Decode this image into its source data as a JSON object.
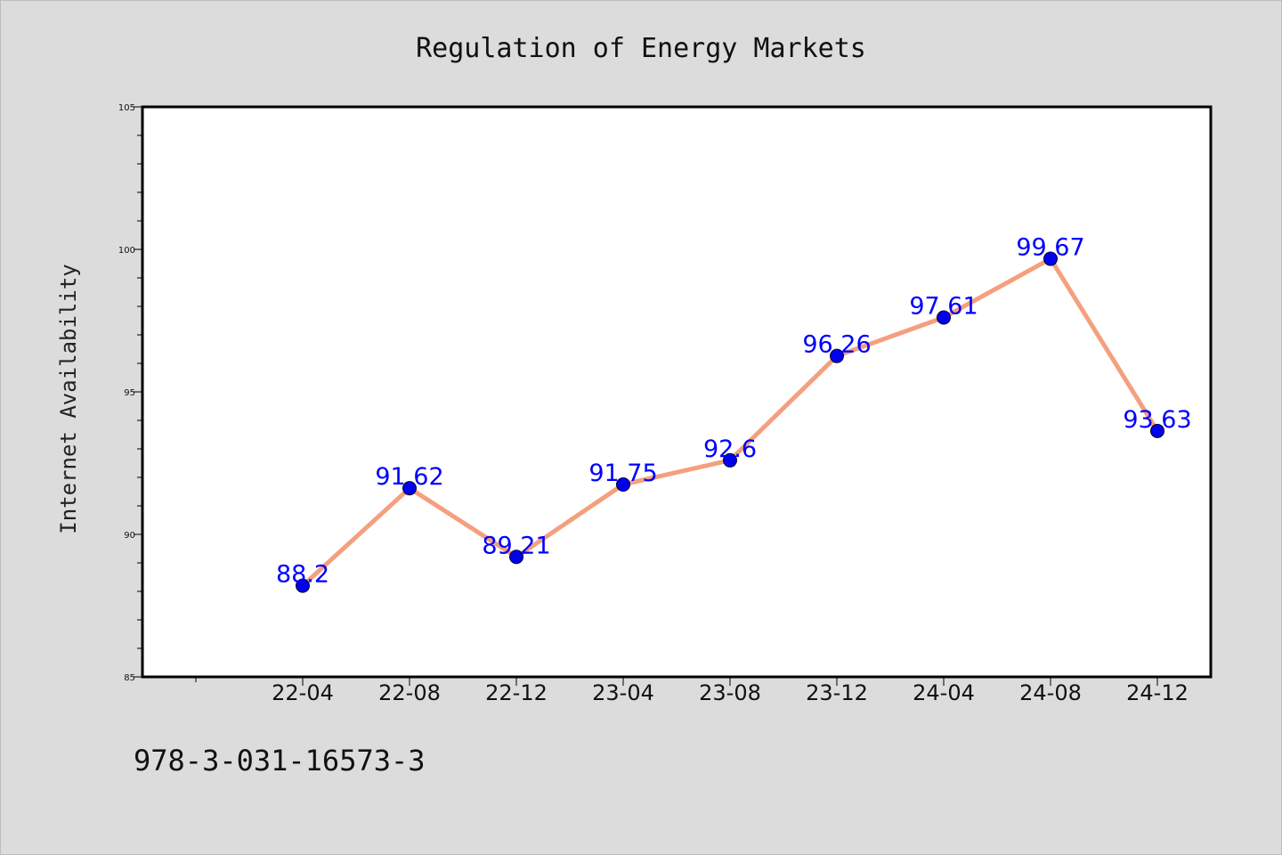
{
  "chart_data": {
    "type": "line",
    "title": "Regulation of Energy Markets",
    "xlabel": "",
    "ylabel": "Internet Availability",
    "categories": [
      "22-04",
      "22-08",
      "22-12",
      "23-04",
      "23-08",
      "23-12",
      "24-04",
      "24-08",
      "24-12"
    ],
    "series": [
      {
        "values": [
          88.2,
          91.62,
          89.21,
          91.75,
          92.6,
          96.26,
          97.61,
          99.67,
          93.63
        ],
        "data_labels": [
          "88.2",
          "91.62",
          "89.21",
          "91.75",
          "92.6",
          "96.26",
          "97.61",
          "99.67",
          "93.63"
        ]
      }
    ],
    "ylim": [
      85,
      105
    ],
    "yticks": [
      "85",
      "90",
      "95",
      "100",
      "105"
    ],
    "grid": false,
    "colors": {
      "line": "#f4a07e",
      "marker": "#0000ee",
      "label": "#0000ff"
    }
  },
  "footer": {
    "isbn": "978-3-031-16573-3"
  }
}
